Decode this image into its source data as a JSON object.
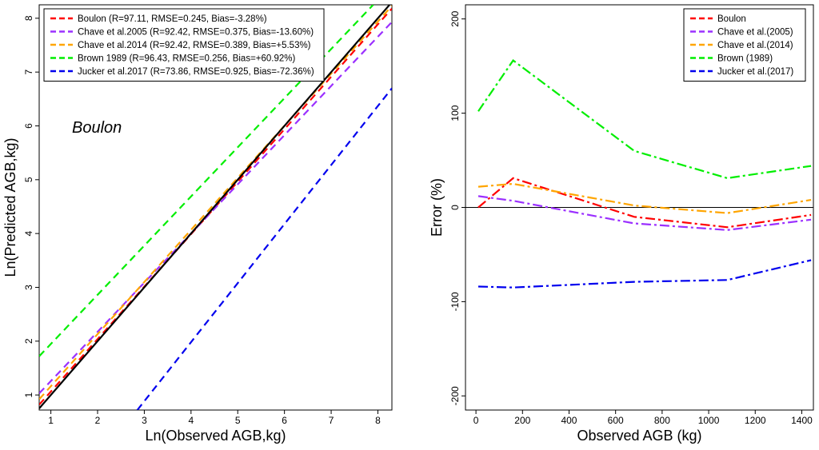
{
  "chart_data": [
    {
      "type": "line",
      "annotation": "Boulon",
      "xlabel": "Ln(Observed AGB,kg)",
      "ylabel": "Ln(Predicted AGB,kg)",
      "xlim": [
        0.75,
        8.3
      ],
      "ylim": [
        0.72,
        8.25
      ],
      "xticks": [
        1,
        2,
        3,
        4,
        5,
        6,
        7,
        8
      ],
      "yticks": [
        1,
        2,
        3,
        4,
        5,
        6,
        7,
        8
      ],
      "legend_position": "top-left",
      "reference_line": {
        "name": "1:1",
        "color": "#000000",
        "x": [
          0.75,
          8.3
        ],
        "y": [
          0.75,
          8.3
        ]
      },
      "series": [
        {
          "name": "Boulon (R=97.11, RMSE=0.245, Bias=-3.28%)",
          "color": "#ff0000",
          "x": [
            0.75,
            8.3
          ],
          "y": [
            0.82,
            8.18
          ]
        },
        {
          "name": "Chave et al.2005 (R=92.42, RMSE=0.375, Bias=-13.60%)",
          "color": "#9b30ff",
          "x": [
            0.75,
            8.3
          ],
          "y": [
            1.03,
            7.93
          ]
        },
        {
          "name": "Chave et al.2014 (R=92.42, RMSE=0.389, Bias=+5.53%)",
          "color": "#ffa500",
          "x": [
            0.75,
            8.3
          ],
          "y": [
            0.92,
            8.23
          ]
        },
        {
          "name": "Brown 1989 (R=96.43, RMSE=0.256, Bias=+60.92%)",
          "color": "#00ee00",
          "x": [
            0.75,
            7.9
          ],
          "y": [
            1.72,
            8.25
          ]
        },
        {
          "name": "Jucker et al.2017 (R=73.86, RMSE=0.925, Bias=-72.36%)",
          "color": "#0000ee",
          "x": [
            2.85,
            8.3
          ],
          "y": [
            0.72,
            6.7
          ]
        }
      ]
    },
    {
      "type": "line",
      "xlabel": "Observed AGB (kg)",
      "ylabel": "Error (%)",
      "xlim": [
        -45,
        1450
      ],
      "ylim": [
        -215,
        215
      ],
      "xticks": [
        0,
        200,
        400,
        600,
        800,
        1000,
        1200,
        1400
      ],
      "yticks": [
        -200,
        -100,
        0,
        100,
        200
      ],
      "hline": 0,
      "legend_position": "top-right",
      "series": [
        {
          "name": "Boulon",
          "color": "#ff0000",
          "x": [
            10,
            160,
            680,
            1080,
            1440
          ],
          "y": [
            0,
            31,
            -10,
            -21,
            -8
          ]
        },
        {
          "name": "Chave et al.(2005)",
          "color": "#9b30ff",
          "x": [
            10,
            160,
            680,
            1080,
            1440
          ],
          "y": [
            12,
            7,
            -17,
            -24,
            -13
          ]
        },
        {
          "name": "Chave et al.(2014)",
          "color": "#ffa500",
          "x": [
            10,
            160,
            680,
            1080,
            1440
          ],
          "y": [
            22,
            25,
            2,
            -6,
            8
          ]
        },
        {
          "name": "Brown (1989)",
          "color": "#00ee00",
          "x": [
            10,
            160,
            680,
            1080,
            1440
          ],
          "y": [
            102,
            156,
            60,
            31,
            44
          ]
        },
        {
          "name": "Jucker et al.(2017)",
          "color": "#0000ee",
          "x": [
            10,
            160,
            680,
            1080,
            1440
          ],
          "y": [
            -84,
            -85,
            -79,
            -77,
            -56
          ]
        }
      ]
    }
  ]
}
